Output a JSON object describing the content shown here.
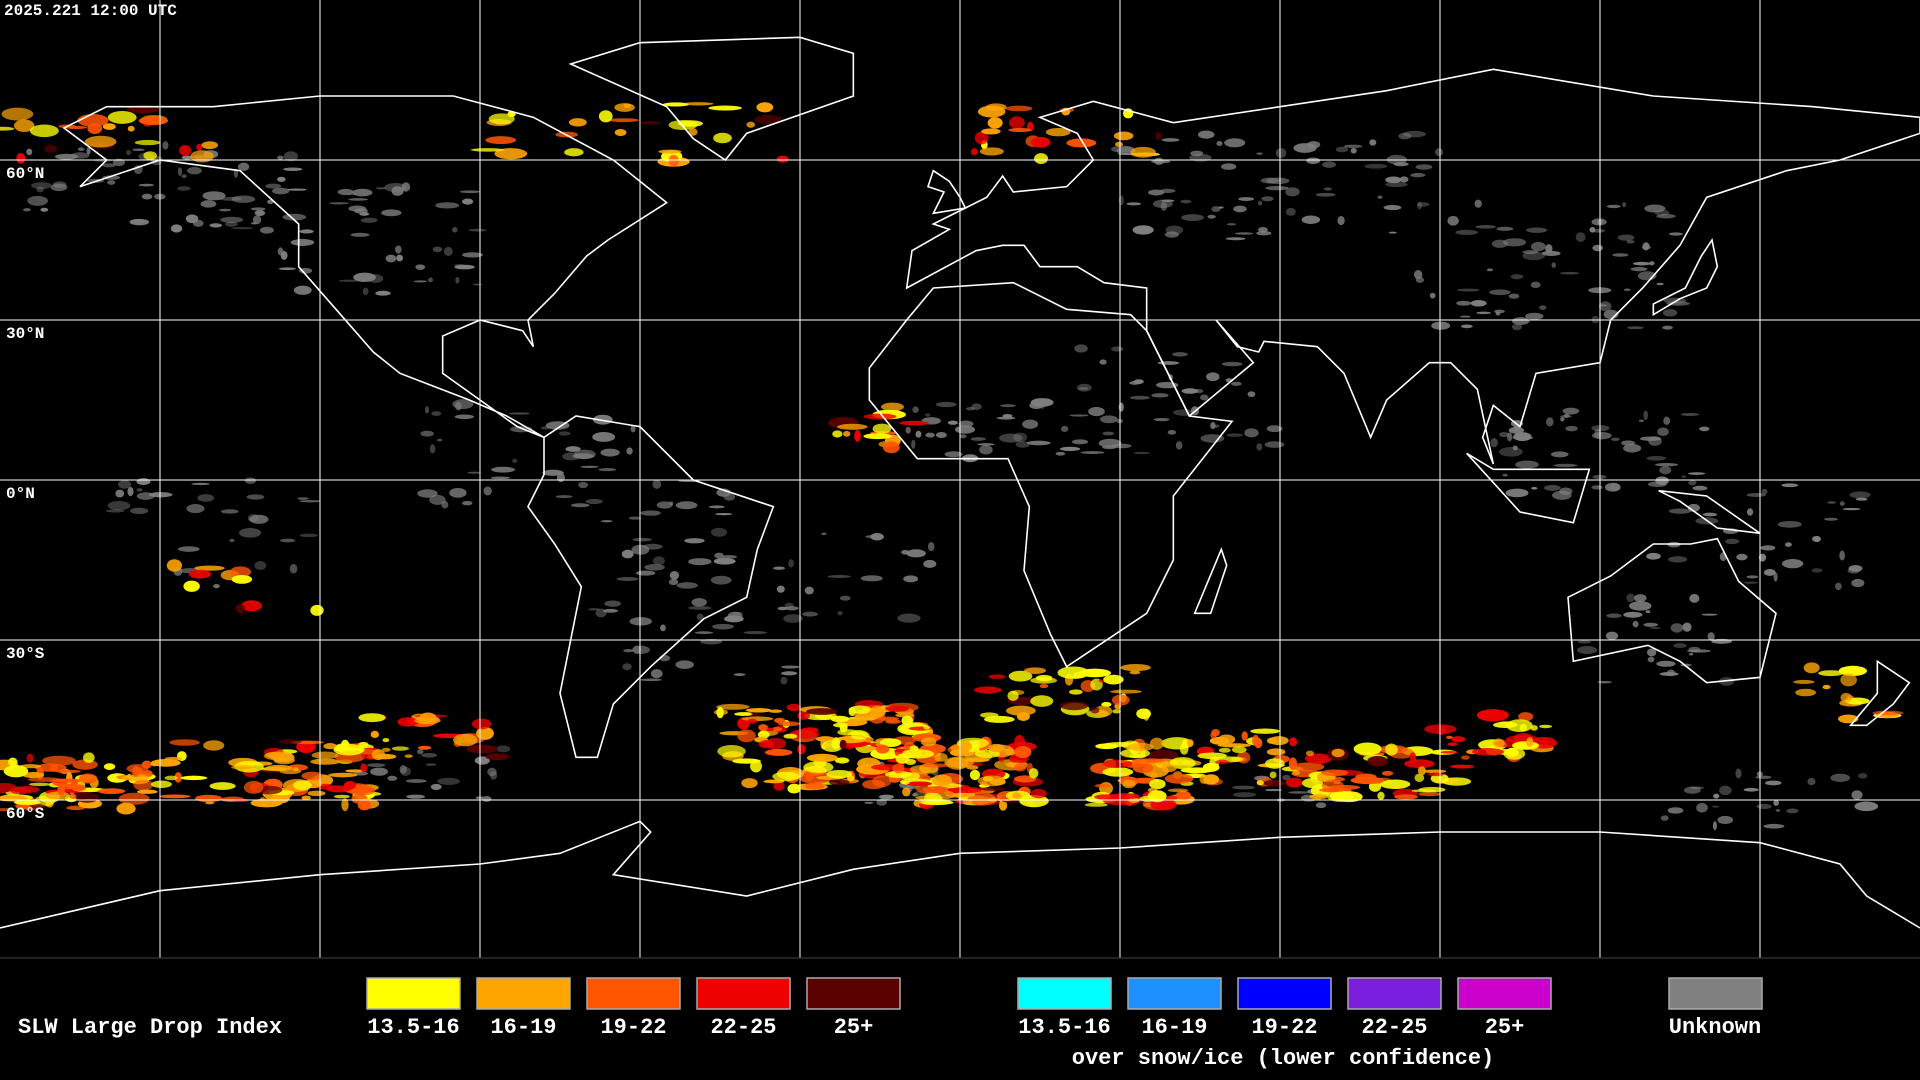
{
  "timestamp": "2025.221 12:00 UTC",
  "lat_labels": [
    "60°N",
    "30°N",
    "0°N",
    "30°S",
    "60°S"
  ],
  "legend": {
    "title": "SLW Large Drop Index",
    "groups": [
      {
        "items": [
          {
            "label": "13.5-16",
            "color": "#ffff00"
          },
          {
            "label": "16-19",
            "color": "#ffa500"
          },
          {
            "label": "19-22",
            "color": "#ff5500"
          },
          {
            "label": "22-25",
            "color": "#ee0000"
          },
          {
            "label": "25+",
            "color": "#5a0000"
          }
        ]
      },
      {
        "items": [
          {
            "label": "13.5-16",
            "color": "#00ffff"
          },
          {
            "label": "16-19",
            "color": "#1e90ff"
          },
          {
            "label": "19-22",
            "color": "#0000ff"
          },
          {
            "label": "22-25",
            "color": "#7a1fe0"
          },
          {
            "label": "25+",
            "color": "#cc00cc"
          }
        ],
        "note": "over snow/ice (lower confidence)"
      }
    ],
    "unknown": {
      "label": "Unknown",
      "color": "#808080"
    }
  }
}
